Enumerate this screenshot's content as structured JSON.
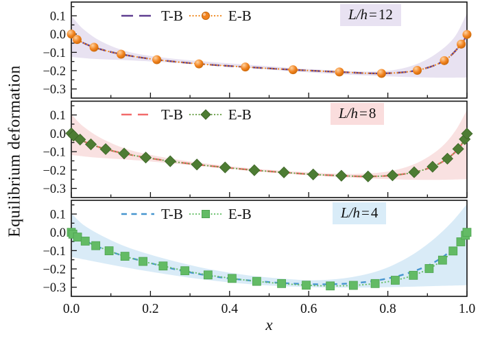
{
  "figure": {
    "y_axis_label": "Equilibrium deformation",
    "x_axis_label": "x",
    "x_tick_labels": [
      "0.0",
      "0.2",
      "0.4",
      "0.6",
      "0.8",
      "1.0"
    ],
    "y_tick_labels": [
      "0.1",
      "0.0",
      "−0.1",
      "−0.2",
      "−0.3"
    ]
  },
  "chart_data": {
    "type": "line",
    "title": "",
    "xlabel": "x",
    "ylabel": "Equilibrium deformation",
    "xlim": [
      0,
      1
    ],
    "ylim": [
      -0.35,
      0.175
    ],
    "x_ticks": [
      0,
      0.2,
      0.4,
      0.6,
      0.8,
      1.0
    ],
    "y_ticks": [
      0.1,
      0.0,
      -0.1,
      -0.2,
      -0.3
    ],
    "grid": false,
    "legend_position": "top-inside",
    "panels": [
      {
        "tag": {
          "parts": [
            "L/h",
            "=",
            "12"
          ],
          "bg": "#e8e2f2"
        },
        "band": {
          "color": "#e8e2f1",
          "upper": [
            [
              0,
              0.1
            ],
            [
              0.03,
              0.028
            ],
            [
              0.08,
              -0.045
            ],
            [
              0.15,
              -0.1
            ],
            [
              0.25,
              -0.133
            ],
            [
              0.35,
              -0.152
            ],
            [
              0.45,
              -0.168
            ],
            [
              0.55,
              -0.184
            ],
            [
              0.65,
              -0.197
            ],
            [
              0.75,
              -0.205
            ],
            [
              0.82,
              -0.195
            ],
            [
              0.88,
              -0.158
            ],
            [
              0.93,
              -0.095
            ],
            [
              0.97,
              -0.012
            ],
            [
              1.0,
              0.115
            ]
          ],
          "lower": [
            [
              0,
              -0.125
            ],
            [
              0.06,
              -0.136
            ],
            [
              0.14,
              -0.143
            ],
            [
              0.22,
              -0.152
            ],
            [
              0.32,
              -0.164
            ],
            [
              0.42,
              -0.18
            ],
            [
              0.52,
              -0.197
            ],
            [
              0.62,
              -0.212
            ],
            [
              0.72,
              -0.224
            ],
            [
              0.82,
              -0.233
            ],
            [
              0.91,
              -0.238
            ],
            [
              1.0,
              -0.238
            ]
          ]
        },
        "series": [
          {
            "name": "T-B",
            "style": "dashed",
            "color": "#5e3d90",
            "dash": "14 7",
            "legend_dash": "17 9",
            "points": [
              [
                0,
                0
              ],
              [
                0.0146,
                -0.03
              ],
              [
                0.0573,
                -0.072
              ],
              [
                0.1257,
                -0.11
              ],
              [
                0.216,
                -0.14
              ],
              [
                0.3225,
                -0.163
              ],
              [
                0.4397,
                -0.18
              ],
              [
                0.5603,
                -0.195
              ],
              [
                0.6775,
                -0.207
              ],
              [
                0.784,
                -0.215
              ],
              [
                0.8743,
                -0.198
              ],
              [
                0.9427,
                -0.145
              ],
              [
                0.9854,
                -0.055
              ],
              [
                1.0,
                -0.002
              ]
            ]
          },
          {
            "name": "E-B",
            "style": "dotted-markers",
            "marker": "circle",
            "line_color": "#f0881f",
            "marker_fill": "#f0821e",
            "marker_highlight": "#ffd2a0",
            "marker_edge": "#c26204",
            "points": [
              [
                0,
                0
              ],
              [
                0.0146,
                -0.03
              ],
              [
                0.0573,
                -0.072
              ],
              [
                0.1257,
                -0.11
              ],
              [
                0.216,
                -0.14
              ],
              [
                0.3225,
                -0.163
              ],
              [
                0.4397,
                -0.18
              ],
              [
                0.5603,
                -0.195
              ],
              [
                0.6775,
                -0.207
              ],
              [
                0.784,
                -0.215
              ],
              [
                0.8743,
                -0.198
              ],
              [
                0.9427,
                -0.145
              ],
              [
                0.9854,
                -0.055
              ],
              [
                1.0,
                -0.002
              ]
            ]
          }
        ]
      },
      {
        "tag": {
          "parts": [
            "L/h",
            "=",
            "8"
          ],
          "bg": "#fadddd"
        },
        "band": {
          "color": "#f9e1e1",
          "upper": [
            [
              0,
              0.105
            ],
            [
              0.03,
              0.038
            ],
            [
              0.08,
              -0.032
            ],
            [
              0.15,
              -0.092
            ],
            [
              0.25,
              -0.137
            ],
            [
              0.35,
              -0.167
            ],
            [
              0.45,
              -0.19
            ],
            [
              0.55,
              -0.206
            ],
            [
              0.65,
              -0.218
            ],
            [
              0.72,
              -0.221
            ],
            [
              0.8,
              -0.208
            ],
            [
              0.87,
              -0.165
            ],
            [
              0.93,
              -0.085
            ],
            [
              0.97,
              0.012
            ],
            [
              1.0,
              0.128
            ]
          ],
          "lower": [
            [
              0,
              -0.118
            ],
            [
              0.06,
              -0.132
            ],
            [
              0.14,
              -0.143
            ],
            [
              0.22,
              -0.157
            ],
            [
              0.32,
              -0.177
            ],
            [
              0.42,
              -0.197
            ],
            [
              0.52,
              -0.216
            ],
            [
              0.62,
              -0.231
            ],
            [
              0.72,
              -0.243
            ],
            [
              0.82,
              -0.251
            ],
            [
              0.91,
              -0.254
            ],
            [
              1.0,
              -0.25
            ]
          ]
        },
        "series": [
          {
            "name": "T-B",
            "style": "dashed",
            "color": "#f26a6a",
            "dash": "13 8",
            "legend_dash": "15 9",
            "points": [
              [
                0,
                0
              ],
              [
                0.0056,
                -0.013
              ],
              [
                0.0222,
                -0.034
              ],
              [
                0.0495,
                -0.06
              ],
              [
                0.0869,
                -0.086
              ],
              [
                0.1335,
                -0.11
              ],
              [
                0.1882,
                -0.132
              ],
              [
                0.25,
                -0.152
              ],
              [
                0.3174,
                -0.17
              ],
              [
                0.3887,
                -0.186
              ],
              [
                0.4626,
                -0.201
              ],
              [
                0.5374,
                -0.213
              ],
              [
                0.6113,
                -0.224
              ],
              [
                0.6826,
                -0.231
              ],
              [
                0.75,
                -0.235
              ],
              [
                0.8118,
                -0.229
              ],
              [
                0.8665,
                -0.212
              ],
              [
                0.9131,
                -0.182
              ],
              [
                0.9505,
                -0.138
              ],
              [
                0.9778,
                -0.085
              ],
              [
                0.9944,
                -0.032
              ],
              [
                1.0,
                -0.002
              ]
            ]
          },
          {
            "name": "E-B",
            "style": "dotted-markers",
            "marker": "diamond",
            "line_color": "#6da24c",
            "marker_fill": "#4d7c33",
            "marker_highlight": "#7fae5f",
            "marker_edge": "#3c6426",
            "points": [
              [
                0,
                0
              ],
              [
                0.0056,
                -0.013
              ],
              [
                0.0222,
                -0.034
              ],
              [
                0.0495,
                -0.06
              ],
              [
                0.0869,
                -0.086
              ],
              [
                0.1335,
                -0.11
              ],
              [
                0.1882,
                -0.132
              ],
              [
                0.25,
                -0.152
              ],
              [
                0.3174,
                -0.17
              ],
              [
                0.3887,
                -0.186
              ],
              [
                0.4626,
                -0.201
              ],
              [
                0.5374,
                -0.213
              ],
              [
                0.6113,
                -0.224
              ],
              [
                0.6826,
                -0.231
              ],
              [
                0.75,
                -0.235
              ],
              [
                0.8118,
                -0.229
              ],
              [
                0.8665,
                -0.212
              ],
              [
                0.9131,
                -0.182
              ],
              [
                0.9505,
                -0.138
              ],
              [
                0.9778,
                -0.085
              ],
              [
                0.9944,
                -0.032
              ],
              [
                1.0,
                -0.002
              ]
            ]
          }
        ]
      },
      {
        "tag": {
          "parts": [
            "L/h",
            "=",
            "4"
          ],
          "bg": "#d9ecf8"
        },
        "band": {
          "color": "#d9ebf7",
          "upper": [
            [
              0,
              0.105
            ],
            [
              0.03,
              0.042
            ],
            [
              0.08,
              -0.022
            ],
            [
              0.15,
              -0.088
            ],
            [
              0.25,
              -0.152
            ],
            [
              0.35,
              -0.202
            ],
            [
              0.45,
              -0.236
            ],
            [
              0.55,
              -0.256
            ],
            [
              0.62,
              -0.262
            ],
            [
              0.7,
              -0.248
            ],
            [
              0.78,
              -0.208
            ],
            [
              0.85,
              -0.138
            ],
            [
              0.91,
              -0.048
            ],
            [
              0.96,
              0.052
            ],
            [
              1.0,
              0.155
            ]
          ],
          "lower": [
            [
              0,
              -0.135
            ],
            [
              0.06,
              -0.16
            ],
            [
              0.14,
              -0.193
            ],
            [
              0.22,
              -0.222
            ],
            [
              0.32,
              -0.254
            ],
            [
              0.42,
              -0.278
            ],
            [
              0.52,
              -0.293
            ],
            [
              0.62,
              -0.301
            ],
            [
              0.72,
              -0.302
            ],
            [
              0.82,
              -0.299
            ],
            [
              0.91,
              -0.294
            ],
            [
              1.0,
              -0.289
            ]
          ]
        },
        "series": [
          {
            "name": "T-B",
            "style": "dashed",
            "color": "#4695cf",
            "dash": "7.5 6.5",
            "legend_dash": "8 6.5",
            "points": [
              [
                0,
                0
              ],
              [
                0.05,
                -0.062
              ],
              [
                0.1,
                -0.106
              ],
              [
                0.15,
                -0.14
              ],
              [
                0.2,
                -0.168
              ],
              [
                0.25,
                -0.196
              ],
              [
                0.3,
                -0.219
              ],
              [
                0.35,
                -0.238
              ],
              [
                0.4,
                -0.252
              ],
              [
                0.45,
                -0.263
              ],
              [
                0.5,
                -0.272
              ],
              [
                0.55,
                -0.279
              ],
              [
                0.6,
                -0.283
              ],
              [
                0.65,
                -0.284
              ],
              [
                0.7,
                -0.28
              ],
              [
                0.75,
                -0.27
              ],
              [
                0.8,
                -0.252
              ],
              [
                0.85,
                -0.224
              ],
              [
                0.9,
                -0.183
              ],
              [
                0.94,
                -0.133
              ],
              [
                0.97,
                -0.078
              ],
              [
                0.99,
                -0.034
              ],
              [
                1.0,
                0.004
              ]
            ]
          },
          {
            "name": "E-B",
            "style": "dotted-markers",
            "marker": "square",
            "line_color": "#68c06a",
            "marker_fill": "#63bb65",
            "marker_highlight": "#9ad89b",
            "marker_edge": "#4da350",
            "points": [
              [
                0,
                0
              ],
              [
                0.0039,
                -0.01
              ],
              [
                0.0157,
                -0.026
              ],
              [
                0.0351,
                -0.048
              ],
              [
                0.0618,
                -0.073
              ],
              [
                0.0955,
                -0.101
              ],
              [
                0.1355,
                -0.131
              ],
              [
                0.1813,
                -0.159
              ],
              [
                0.2321,
                -0.184
              ],
              [
                0.2871,
                -0.21
              ],
              [
                0.3455,
                -0.233
              ],
              [
                0.4063,
                -0.252
              ],
              [
                0.4686,
                -0.268
              ],
              [
                0.5314,
                -0.28
              ],
              [
                0.5937,
                -0.289
              ],
              [
                0.6545,
                -0.293
              ],
              [
                0.7129,
                -0.29
              ],
              [
                0.7679,
                -0.28
              ],
              [
                0.8187,
                -0.262
              ],
              [
                0.8645,
                -0.235
              ],
              [
                0.9045,
                -0.198
              ],
              [
                0.9382,
                -0.152
              ],
              [
                0.9649,
                -0.102
              ],
              [
                0.9843,
                -0.052
              ],
              [
                0.9961,
                -0.016
              ],
              [
                1.0,
                0.0
              ]
            ]
          }
        ]
      }
    ]
  }
}
